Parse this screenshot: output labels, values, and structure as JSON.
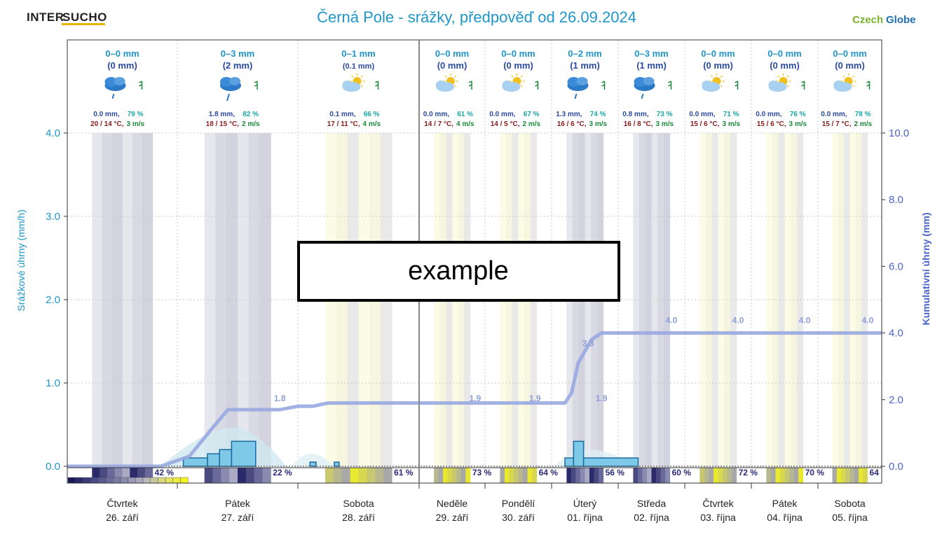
{
  "header": {
    "logo_left_a": "INTER",
    "logo_left_b": "SUCHO",
    "title": "Černá Pole - srážky, předpověď od 26.09.2024",
    "logo_right_a": "Czech",
    "logo_right_b": "Globe"
  },
  "overlay_label": "example",
  "colors": {
    "title": "#1e96c8",
    "precip": "#1e96c8",
    "cumulative": "#8fa0d8",
    "temp": "#8b1a1a",
    "wind": "#1a8a3a",
    "humidity": "#1aa6a6"
  },
  "chart_data": {
    "type": "bar",
    "title": "Černá Pole - srážky, předpověď od 26.09.2024",
    "ylabel": "Srážkové úhrny (mm/h)",
    "y2label": "Kumulativní úhrny (mm)",
    "ylim": [
      0,
      4.0
    ],
    "y2lim": [
      0,
      10.0
    ],
    "yticks": [
      "0.0",
      "1.0",
      "2.0",
      "3.0",
      "4.0"
    ],
    "y2ticks": [
      "0.0",
      "2.0",
      "4.0",
      "6.0",
      "8.0",
      "10.0"
    ],
    "grid": true,
    "days": [
      {
        "name": "Čtvrtek",
        "date": "26. září",
        "range": "0–0 mm",
        "sum": "(0 mm)",
        "precip": "0.0 mm,",
        "humidity": "79 %",
        "temp": "20 / 14 °C,",
        "wind": "3 m/s",
        "cloud_pct": "42 %",
        "icon": "rain-cloud-icon",
        "cum_label": ""
      },
      {
        "name": "Pátek",
        "date": "27. září",
        "range": "0–3 mm",
        "sum": "(2 mm)",
        "precip": "1.8 mm,",
        "humidity": "82 %",
        "temp": "18 / 15 °C,",
        "wind": "2 m/s",
        "cloud_pct": "22 %",
        "icon": "heavy-rain-cloud-icon",
        "cum_label": "1.8"
      },
      {
        "name": "Sobota",
        "date": "28. září",
        "range": "0–1 mm",
        "sum": "(0.1 mm)",
        "precip": "0.1 mm,",
        "humidity": "66 %",
        "temp": "17 / 11 °C,",
        "wind": "4 m/s",
        "cloud_pct": "61 %",
        "icon": "sun-cloud-drizzle-icon",
        "cum_label": "1.9"
      },
      {
        "name": "Neděle",
        "date": "29. září",
        "range": "0–0 mm",
        "sum": "(0 mm)",
        "precip": "0.0 mm,",
        "humidity": "61 %",
        "temp": "14 / 7 °C,",
        "wind": "4 m/s",
        "cloud_pct": "73 %",
        "icon": "sun-cloud-icon",
        "cum_label": "1.9"
      },
      {
        "name": "Pondělí",
        "date": "30. září",
        "range": "0–0 mm",
        "sum": "(0 mm)",
        "precip": "0.0 mm,",
        "humidity": "67 %",
        "temp": "14 / 5 °C,",
        "wind": "2 m/s",
        "cloud_pct": "64 %",
        "icon": "sun-cloud-icon",
        "cum_label": "1.9"
      },
      {
        "name": "Úterý",
        "date": "01. října",
        "range": "0–2 mm",
        "sum": "(1 mm)",
        "precip": "1.3 mm,",
        "humidity": "74 %",
        "temp": "16 / 6 °C,",
        "wind": "3 m/s",
        "cloud_pct": "56 %",
        "icon": "rain-cloud-icon",
        "cum_label": "3.3"
      },
      {
        "name": "Středa",
        "date": "02. října",
        "range": "0–3 mm",
        "sum": "(1 mm)",
        "precip": "0.8 mm,",
        "humidity": "73 %",
        "temp": "16 / 8 °C,",
        "wind": "3 m/s",
        "cloud_pct": "60 %",
        "icon": "rain-cloud-icon",
        "cum_label": "4.0"
      },
      {
        "name": "Čtvrtek",
        "date": "03. října",
        "range": "0–0 mm",
        "sum": "(0 mm)",
        "precip": "0.0 mm,",
        "humidity": "71 %",
        "temp": "15 / 6 °C,",
        "wind": "3 m/s",
        "cloud_pct": "72 %",
        "icon": "sun-cloud-icon",
        "cum_label": "4.0"
      },
      {
        "name": "Pátek",
        "date": "04. října",
        "range": "0–0 mm",
        "sum": "(0 mm)",
        "precip": "0.0 mm,",
        "humidity": "76 %",
        "temp": "15 / 6 °C,",
        "wind": "3 m/s",
        "cloud_pct": "70 %",
        "icon": "sun-cloud-icon",
        "cum_label": "4.0"
      },
      {
        "name": "Sobota",
        "date": "05. října",
        "range": "0–0 mm",
        "sum": "(0 mm)",
        "precip": "0.0 mm,",
        "humidity": "78 %",
        "temp": "15 / 7 °C,",
        "wind": "2 m/s",
        "cloud_pct": "64",
        "icon": "sun-cloud-icon",
        "cum_label": "4.0"
      }
    ],
    "hourly_precip": [
      {
        "t": 0.0,
        "v": 0.0
      },
      {
        "t": 1.05,
        "v": 0.1
      },
      {
        "t": 1.25,
        "v": 0.15
      },
      {
        "t": 1.35,
        "v": 0.2
      },
      {
        "t": 1.45,
        "v": 0.3
      },
      {
        "t": 1.65,
        "v": 0.0
      },
      {
        "t": 2.1,
        "v": 0.05
      },
      {
        "t": 2.15,
        "v": 0.0
      },
      {
        "t": 2.3,
        "v": 0.05
      },
      {
        "t": 2.34,
        "v": 0.0
      },
      {
        "t": 5.2,
        "v": 0.1
      },
      {
        "t": 5.33,
        "v": 0.3
      },
      {
        "t": 5.48,
        "v": 0.1
      },
      {
        "t": 6.3,
        "v": 0.0
      }
    ],
    "cumulative": [
      {
        "t": 0.0,
        "v": 0.0
      },
      {
        "t": 0.85,
        "v": 0.0
      },
      {
        "t": 1.1,
        "v": 0.3
      },
      {
        "t": 1.28,
        "v": 1.1
      },
      {
        "t": 1.42,
        "v": 1.7
      },
      {
        "t": 1.85,
        "v": 1.7
      },
      {
        "t": 2.0,
        "v": 1.8
      },
      {
        "t": 2.12,
        "v": 1.8
      },
      {
        "t": 2.25,
        "v": 1.9
      },
      {
        "t": 4.6,
        "v": 1.9
      },
      {
        "t": 5.2,
        "v": 1.9
      },
      {
        "t": 5.3,
        "v": 2.2
      },
      {
        "t": 5.4,
        "v": 3.1
      },
      {
        "t": 5.6,
        "v": 3.8
      },
      {
        "t": 5.75,
        "v": 4.0
      },
      {
        "t": 10.0,
        "v": 4.0
      }
    ]
  }
}
